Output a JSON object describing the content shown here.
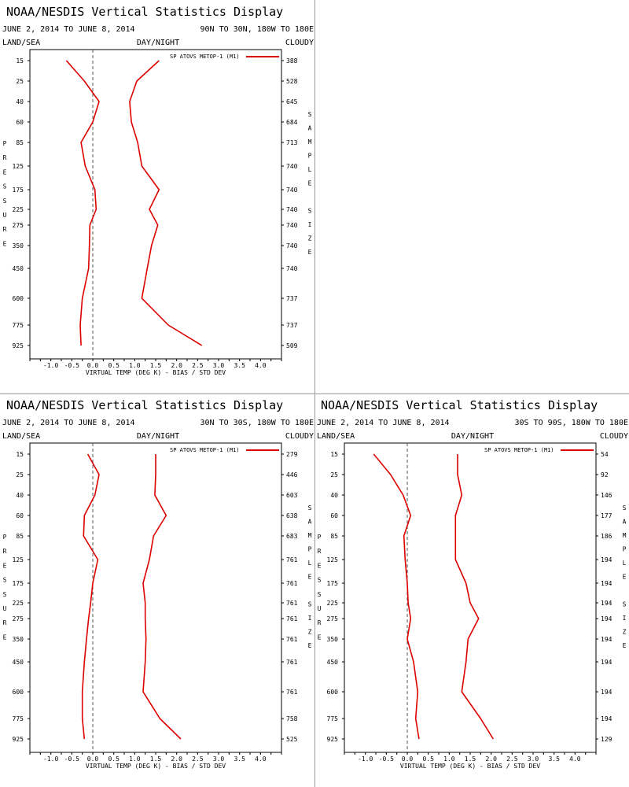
{
  "colors": {
    "series": "#dd0000",
    "axis": "#000000",
    "zero_line": "#555555",
    "divider": "#9a9a9a"
  },
  "chart_data": [
    {
      "type": "line",
      "title": "NOAA/NESDIS Vertical Statistics Display",
      "date_range": "JUNE 2, 2014 TO JUNE 8, 2014",
      "region": "90N TO 30N, 180W TO 180E",
      "corner_left": "LAND/SEA",
      "corner_mid": "DAY/NIGHT",
      "corner_right": "CLOUDY",
      "xlabel": "VIRTUAL TEMP (DEG K) - BIAS / STD DEV",
      "ylabel": "PRESSURE",
      "y2label": "SAMPLE SIZE",
      "legend": "SP ATOVS METOP-1 (M1)",
      "xlim": [
        -1.5,
        4.5
      ],
      "xticks": [
        "-1.0",
        "-0.5",
        "0.0",
        "0.5",
        "1.0",
        "1.5",
        "2.0",
        "2.5",
        "3.0",
        "3.5",
        "4.0"
      ],
      "pressure_levels": [
        "15",
        "25",
        "40",
        "60",
        "85",
        "125",
        "175",
        "225",
        "275",
        "350",
        "450",
        "600",
        "775",
        "925"
      ],
      "sample_sizes": [
        "388",
        "528",
        "645",
        "684",
        "713",
        "740",
        "740",
        "740",
        "740",
        "740",
        "740",
        "737",
        "737",
        "509"
      ],
      "series": [
        {
          "name": "BIAS",
          "values": [
            -0.63,
            -0.2,
            0.15,
            0.0,
            -0.28,
            -0.18,
            0.05,
            0.08,
            -0.07,
            -0.08,
            -0.1,
            -0.25,
            -0.3,
            -0.28
          ]
        },
        {
          "name": "STD DEV",
          "values": [
            1.58,
            1.05,
            0.88,
            0.92,
            1.07,
            1.17,
            1.58,
            1.35,
            1.55,
            1.4,
            1.3,
            1.17,
            1.8,
            2.6
          ]
        }
      ]
    },
    {
      "type": "line",
      "title": "NOAA/NESDIS Vertical Statistics Display",
      "date_range": "JUNE 2, 2014 TO JUNE 8, 2014",
      "region": "30N TO 30S, 180W TO 180E",
      "corner_left": "LAND/SEA",
      "corner_mid": "DAY/NIGHT",
      "corner_right": "CLOUDY",
      "xlabel": "VIRTUAL TEMP (DEG K) - BIAS / STD DEV",
      "ylabel": "PRESSURE",
      "y2label": "SAMPLE SIZE",
      "legend": "SP ATOVS METOP-1 (M1)",
      "xlim": [
        -1.5,
        4.5
      ],
      "xticks": [
        "-1.0",
        "-0.5",
        "0.0",
        "0.5",
        "1.0",
        "1.5",
        "2.0",
        "2.5",
        "3.0",
        "3.5",
        "4.0"
      ],
      "pressure_levels": [
        "15",
        "25",
        "40",
        "60",
        "85",
        "125",
        "175",
        "225",
        "275",
        "350",
        "450",
        "600",
        "775",
        "925"
      ],
      "sample_sizes": [
        "279",
        "446",
        "603",
        "638",
        "683",
        "761",
        "761",
        "761",
        "761",
        "761",
        "761",
        "761",
        "758",
        "525"
      ],
      "series": [
        {
          "name": "BIAS",
          "values": [
            -0.12,
            0.15,
            0.05,
            -0.2,
            -0.22,
            0.12,
            0.0,
            -0.05,
            -0.1,
            -0.15,
            -0.2,
            -0.25,
            -0.25,
            -0.2
          ]
        },
        {
          "name": "STD DEV",
          "values": [
            1.5,
            1.5,
            1.48,
            1.75,
            1.45,
            1.35,
            1.2,
            1.25,
            1.25,
            1.27,
            1.25,
            1.2,
            1.6,
            2.1
          ]
        }
      ]
    },
    {
      "type": "line",
      "title": "NOAA/NESDIS Vertical Statistics Display",
      "date_range": "JUNE 2, 2014 TO JUNE 8, 2014",
      "region": "30S TO 90S, 180W TO 180E",
      "corner_left": "LAND/SEA",
      "corner_mid": "DAY/NIGHT",
      "corner_right": "CLOUDY",
      "xlabel": "VIRTUAL TEMP (DEG K) - BIAS / STD DEV",
      "ylabel": "PRESSURE",
      "y2label": "SAMPLE SIZE",
      "legend": "SP ATOVS METOP-1 (M1)",
      "xlim": [
        -1.5,
        4.5
      ],
      "xticks": [
        "-1.0",
        "-0.5",
        "0.0",
        "0.5",
        "1.0",
        "1.5",
        "2.0",
        "2.5",
        "3.0",
        "3.5",
        "4.0"
      ],
      "pressure_levels": [
        "15",
        "25",
        "40",
        "60",
        "85",
        "125",
        "175",
        "225",
        "275",
        "350",
        "450",
        "600",
        "775",
        "925"
      ],
      "sample_sizes": [
        "54",
        "92",
        "146",
        "177",
        "186",
        "194",
        "194",
        "194",
        "194",
        "194",
        "194",
        "194",
        "194",
        "129"
      ],
      "series": [
        {
          "name": "BIAS",
          "values": [
            -0.8,
            -0.4,
            -0.1,
            0.08,
            -0.08,
            -0.05,
            0.0,
            0.02,
            0.08,
            0.0,
            0.15,
            0.25,
            0.2,
            0.28
          ]
        },
        {
          "name": "STD DEV",
          "values": [
            1.2,
            1.2,
            1.3,
            1.15,
            1.15,
            1.15,
            1.4,
            1.5,
            1.7,
            1.45,
            1.4,
            1.3,
            1.75,
            2.05
          ]
        }
      ]
    }
  ]
}
